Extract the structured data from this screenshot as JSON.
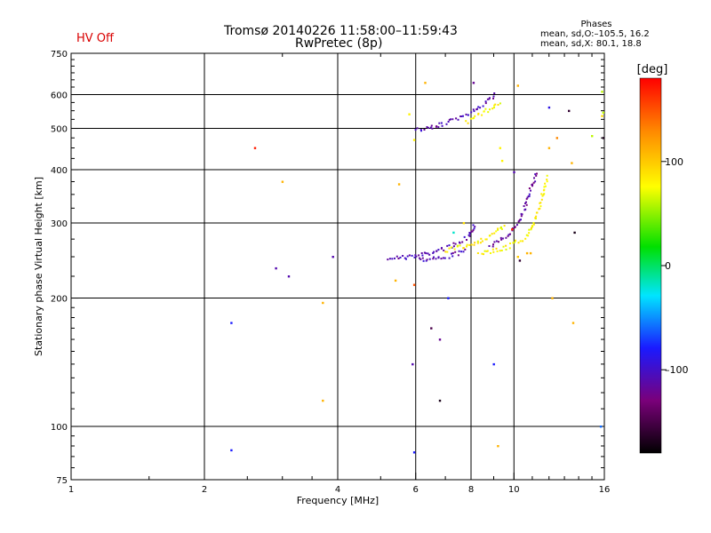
{
  "header": {
    "title_line1": "Tromsø 20140226 11:58:00–11:59:43",
    "title_line2": "RwPretec (8p)",
    "status": "HV Off"
  },
  "phase_stats": {
    "heading": "Phases",
    "line_o": "mean, sd,O:–105.5, 16.2",
    "line_x": "mean, sd,X:  80.1, 18.8"
  },
  "colorbar": {
    "label": "[deg]",
    "ticks": [
      "100",
      "0",
      "–100"
    ],
    "tick_values": [
      100,
      0,
      -100
    ],
    "range": [
      -180,
      180
    ]
  },
  "chart_data": {
    "type": "scatter",
    "title": "Tromsø 20140226 11:58:00–11:59:43",
    "subtitle": "RwPretec (8p)",
    "xlabel": "Frequency [MHz]",
    "ylabel": "Stationary phase Virtual Height [km]",
    "xscale": "log",
    "yscale": "log",
    "xlim": [
      1,
      16
    ],
    "ylim": [
      75,
      750
    ],
    "x_ticks": [
      1,
      2,
      4,
      6,
      8,
      10,
      16
    ],
    "x_tick_labels": [
      "1",
      "2",
      "4",
      "6",
      "8",
      "10",
      "16"
    ],
    "y_ticks": [
      75,
      100,
      200,
      300,
      400,
      500,
      600,
      750
    ],
    "y_tick_labels": [
      "75",
      "100",
      "200",
      "300",
      "400",
      "500",
      "600",
      "750"
    ],
    "grid": true,
    "color_encoding": "phase_deg",
    "traces": [
      {
        "name": "F-region O-mode trace",
        "phase": -110,
        "points": [
          [
            5.2,
            250
          ],
          [
            5.5,
            250
          ],
          [
            5.8,
            251
          ],
          [
            6.0,
            252
          ],
          [
            6.2,
            254
          ],
          [
            6.5,
            257
          ],
          [
            6.8,
            261
          ],
          [
            7.1,
            265
          ],
          [
            7.4,
            270
          ],
          [
            7.7,
            276
          ],
          [
            7.9,
            282
          ],
          [
            8.0,
            288
          ],
          [
            8.05,
            295
          ],
          [
            8.1,
            302
          ]
        ]
      },
      {
        "name": "F-region O-mode lower branch",
        "phase": -110,
        "points": [
          [
            6.0,
            250
          ],
          [
            6.3,
            248
          ],
          [
            6.7,
            249
          ],
          [
            7.0,
            251
          ],
          [
            7.3,
            254
          ],
          [
            7.6,
            258
          ],
          [
            7.8,
            262
          ]
        ]
      },
      {
        "name": "F-region X-mode trace",
        "phase": 80,
        "points": [
          [
            7.0,
            260
          ],
          [
            7.3,
            262
          ],
          [
            7.6,
            265
          ],
          [
            7.9,
            268
          ],
          [
            8.2,
            272
          ],
          [
            8.5,
            276
          ],
          [
            8.8,
            281
          ],
          [
            9.1,
            287
          ],
          [
            9.3,
            293
          ],
          [
            9.5,
            300
          ]
        ]
      },
      {
        "name": "F-region X-mode high-frequency branch",
        "phase": 80,
        "points": [
          [
            8.3,
            255
          ],
          [
            8.8,
            258
          ],
          [
            9.3,
            262
          ],
          [
            9.8,
            267
          ],
          [
            10.2,
            273
          ],
          [
            10.6,
            280
          ],
          [
            10.9,
            290
          ],
          [
            11.1,
            305
          ],
          [
            11.3,
            325
          ],
          [
            11.5,
            345
          ],
          [
            11.7,
            370
          ],
          [
            11.85,
            390
          ]
        ]
      },
      {
        "name": "Steep O-mode branch near 10 MHz",
        "phase": -115,
        "points": [
          [
            8.8,
            265
          ],
          [
            9.2,
            272
          ],
          [
            9.6,
            282
          ],
          [
            9.9,
            292
          ],
          [
            10.2,
            305
          ],
          [
            10.5,
            325
          ],
          [
            10.7,
            345
          ],
          [
            10.9,
            365
          ],
          [
            11.1,
            385
          ],
          [
            11.2,
            400
          ]
        ]
      },
      {
        "name": "Second-hop O-mode trace",
        "phase": -110,
        "points": [
          [
            6.0,
            500
          ],
          [
            6.3,
            502
          ],
          [
            6.6,
            507
          ],
          [
            6.9,
            514
          ],
          [
            7.2,
            522
          ],
          [
            7.5,
            532
          ],
          [
            7.8,
            543
          ],
          [
            8.1,
            555
          ],
          [
            8.4,
            568
          ],
          [
            8.7,
            582
          ],
          [
            8.9,
            595
          ],
          [
            9.1,
            605
          ]
        ]
      },
      {
        "name": "Second-hop X-mode trace",
        "phase": 80,
        "points": [
          [
            7.8,
            520
          ],
          [
            8.1,
            530
          ],
          [
            8.4,
            542
          ],
          [
            8.7,
            555
          ],
          [
            9.0,
            568
          ],
          [
            9.3,
            578
          ]
        ]
      }
    ],
    "scatter_points": [
      [
        2.6,
        450,
        170
      ],
      [
        3.0,
        375,
        110
      ],
      [
        2.9,
        235,
        -110
      ],
      [
        3.1,
        225,
        -110
      ],
      [
        3.9,
        250,
        -110
      ],
      [
        2.3,
        175,
        -80
      ],
      [
        3.7,
        195,
        110
      ],
      [
        3.7,
        115,
        110
      ],
      [
        2.3,
        88,
        -80
      ],
      [
        5.5,
        370,
        110
      ],
      [
        5.4,
        220,
        110
      ],
      [
        5.95,
        215,
        150
      ],
      [
        5.9,
        140,
        -110
      ],
      [
        5.95,
        87,
        -80
      ],
      [
        6.3,
        640,
        110
      ],
      [
        6.5,
        170,
        -150
      ],
      [
        6.8,
        160,
        -120
      ],
      [
        6.8,
        115,
        -170
      ],
      [
        7.1,
        200,
        -80
      ],
      [
        8.1,
        640,
        -120
      ],
      [
        9.3,
        450,
        80
      ],
      [
        9.4,
        420,
        80
      ],
      [
        10.0,
        395,
        -110
      ],
      [
        9.2,
        90,
        110
      ],
      [
        9.0,
        140,
        -80
      ],
      [
        10.2,
        630,
        110
      ],
      [
        12.0,
        560,
        -90
      ],
      [
        12.5,
        475,
        130
      ],
      [
        12.0,
        450,
        110
      ],
      [
        13.3,
        550,
        -160
      ],
      [
        13.5,
        415,
        110
      ],
      [
        13.7,
        285,
        -170
      ],
      [
        13.6,
        175,
        110
      ],
      [
        12.2,
        200,
        110
      ],
      [
        15.0,
        480,
        60
      ],
      [
        15.8,
        535,
        90
      ],
      [
        15.9,
        545,
        60
      ],
      [
        15.8,
        610,
        60
      ],
      [
        15.7,
        100,
        -60
      ],
      [
        15.9,
        475,
        -170
      ],
      [
        10.3,
        245,
        -160
      ],
      [
        10.2,
        250,
        100
      ],
      [
        10.7,
        255,
        110
      ],
      [
        10.9,
        255,
        110
      ],
      [
        9.9,
        290,
        170
      ],
      [
        5.8,
        540,
        80
      ],
      [
        5.95,
        470,
        80
      ],
      [
        7.7,
        300,
        90
      ],
      [
        7.3,
        285,
        -20
      ]
    ]
  }
}
